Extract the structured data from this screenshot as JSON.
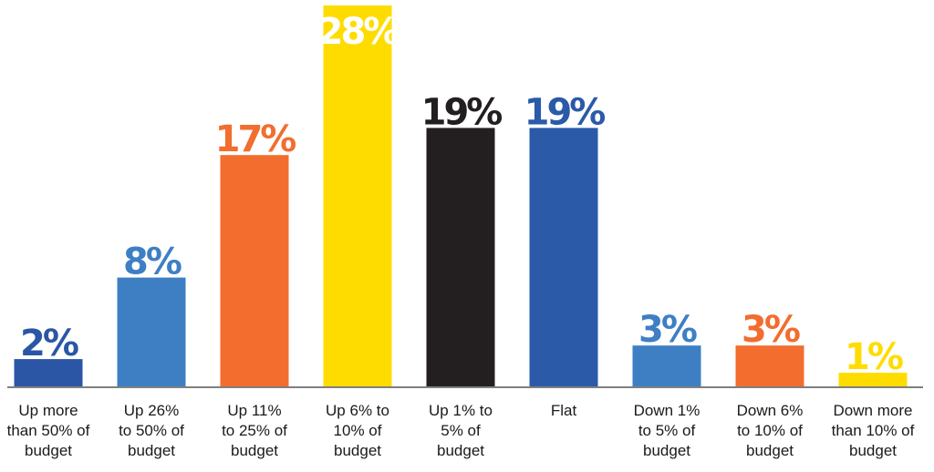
{
  "chart_data": {
    "type": "bar",
    "title": "",
    "xlabel": "",
    "ylabel": "",
    "ylim": [
      0,
      28
    ],
    "grid": false,
    "legend": "none",
    "value_suffix": "%",
    "categories": [
      [
        "Up more",
        "than 50% of",
        "budget"
      ],
      [
        "Up 26%",
        "to 50% of",
        "budget"
      ],
      [
        "Up 11%",
        "to 25% of",
        "budget"
      ],
      [
        "Up 6% to",
        "10% of",
        "budget"
      ],
      [
        "Up 1% to",
        "5% of",
        "budget"
      ],
      [
        "Flat"
      ],
      [
        "Down 1%",
        "to 5% of",
        "budget"
      ],
      [
        "Down 6%",
        "to 10% of",
        "budget"
      ],
      [
        "Down more",
        "than 10% of",
        "budget"
      ]
    ],
    "values": [
      2,
      8,
      17,
      28,
      19,
      19,
      3,
      3,
      1
    ],
    "colors": [
      "#2a56a5",
      "#3e7fc4",
      "#f26d2e",
      "#ffdc00",
      "#231f20",
      "#2a5aa8",
      "#3e7fc4",
      "#f26d2e",
      "#ffdc00"
    ],
    "label_colors": [
      "#2a56a5",
      "#3e7fc4",
      "#f26d2e",
      "#ffffff",
      "#231f20",
      "#2a5aa8",
      "#3e7fc4",
      "#f26d2e",
      "#ffdc00"
    ],
    "baseline_color": "#555555"
  }
}
